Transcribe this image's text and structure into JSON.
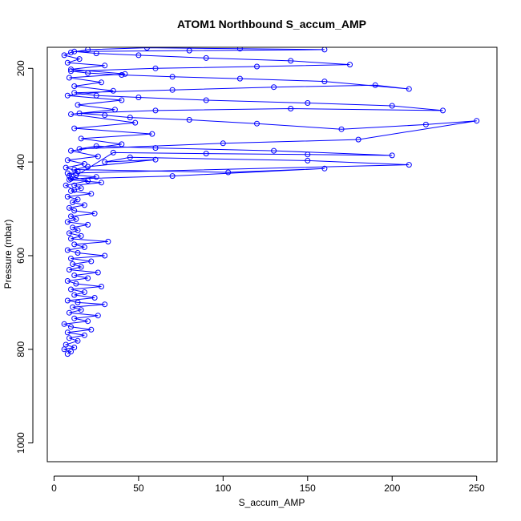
{
  "chart_data": {
    "type": "line",
    "title": "ATOM1 Northbound S_accum_AMP",
    "xlabel": "S_accum_AMP",
    "ylabel": "Pressure (mbar)",
    "xlim": [
      -4,
      262
    ],
    "ylim": [
      1040,
      155
    ],
    "y_reversed": true,
    "x_ticks": [
      0,
      50,
      100,
      150,
      200,
      250
    ],
    "y_ticks": [
      200,
      400,
      600,
      800,
      1000
    ],
    "marker": "open-circle",
    "series": [
      {
        "color": "#0000ff",
        "points": [
          [
            8,
            810
          ],
          [
            10,
            805
          ],
          [
            6,
            800
          ],
          [
            12,
            796
          ],
          [
            7,
            790
          ],
          [
            14,
            782
          ],
          [
            9,
            776
          ],
          [
            18,
            770
          ],
          [
            8,
            764
          ],
          [
            22,
            758
          ],
          [
            10,
            752
          ],
          [
            6,
            746
          ],
          [
            20,
            740
          ],
          [
            12,
            734
          ],
          [
            26,
            728
          ],
          [
            9,
            722
          ],
          [
            16,
            716
          ],
          [
            11,
            710
          ],
          [
            30,
            704
          ],
          [
            14,
            700
          ],
          [
            8,
            696
          ],
          [
            24,
            690
          ],
          [
            12,
            684
          ],
          [
            18,
            678
          ],
          [
            10,
            672
          ],
          [
            28,
            666
          ],
          [
            13,
            660
          ],
          [
            8,
            654
          ],
          [
            20,
            648
          ],
          [
            12,
            642
          ],
          [
            26,
            636
          ],
          [
            9,
            630
          ],
          [
            16,
            624
          ],
          [
            11,
            618
          ],
          [
            22,
            612
          ],
          [
            10,
            606
          ],
          [
            30,
            600
          ],
          [
            14,
            594
          ],
          [
            8,
            588
          ],
          [
            18,
            582
          ],
          [
            12,
            576
          ],
          [
            32,
            570
          ],
          [
            10,
            564
          ],
          [
            16,
            558
          ],
          [
            9,
            552
          ],
          [
            14,
            546
          ],
          [
            11,
            540
          ],
          [
            20,
            534
          ],
          [
            8,
            528
          ],
          [
            13,
            522
          ],
          [
            10,
            516
          ],
          [
            24,
            510
          ],
          [
            12,
            504
          ],
          [
            9,
            498
          ],
          [
            18,
            492
          ],
          [
            11,
            486
          ],
          [
            14,
            480
          ],
          [
            8,
            474
          ],
          [
            22,
            468
          ],
          [
            10,
            462
          ],
          [
            16,
            456
          ],
          [
            12,
            450
          ],
          [
            28,
            444
          ],
          [
            9,
            438
          ],
          [
            25,
            432
          ],
          [
            13,
            428
          ],
          [
            8,
            424
          ],
          [
            210,
            406
          ],
          [
            150,
            397
          ],
          [
            45,
            390
          ],
          [
            30,
            400
          ],
          [
            60,
            395
          ],
          [
            20,
            410
          ],
          [
            12,
            416
          ],
          [
            103,
            422
          ],
          [
            160,
            414
          ],
          [
            70,
            430
          ],
          [
            10,
            436
          ],
          [
            35,
            380
          ],
          [
            90,
            382
          ],
          [
            150,
            384
          ],
          [
            200,
            386
          ],
          [
            130,
            376
          ],
          [
            60,
            370
          ],
          [
            25,
            366
          ],
          [
            15,
            372
          ],
          [
            100,
            360
          ],
          [
            180,
            352
          ],
          [
            250,
            312
          ],
          [
            220,
            320
          ],
          [
            170,
            330
          ],
          [
            120,
            318
          ],
          [
            80,
            310
          ],
          [
            45,
            305
          ],
          [
            30,
            300
          ],
          [
            15,
            296
          ],
          [
            60,
            290
          ],
          [
            140,
            286
          ],
          [
            230,
            290
          ],
          [
            200,
            280
          ],
          [
            150,
            274
          ],
          [
            90,
            268
          ],
          [
            50,
            262
          ],
          [
            25,
            258
          ],
          [
            12,
            252
          ],
          [
            70,
            246
          ],
          [
            130,
            240
          ],
          [
            190,
            236
          ],
          [
            210,
            244
          ],
          [
            160,
            228
          ],
          [
            110,
            222
          ],
          [
            70,
            218
          ],
          [
            40,
            214
          ],
          [
            20,
            210
          ],
          [
            10,
            206
          ],
          [
            60,
            200
          ],
          [
            120,
            196
          ],
          [
            175,
            192
          ],
          [
            140,
            184
          ],
          [
            90,
            178
          ],
          [
            50,
            172
          ],
          [
            25,
            168
          ],
          [
            12,
            164
          ],
          [
            80,
            162
          ],
          [
            160,
            160
          ],
          [
            110,
            158
          ],
          [
            55,
            156
          ],
          [
            20,
            160
          ],
          [
            10,
            166
          ],
          [
            6,
            172
          ],
          [
            15,
            180
          ],
          [
            8,
            188
          ],
          [
            30,
            194
          ],
          [
            10,
            202
          ],
          [
            42,
            212
          ],
          [
            9,
            220
          ],
          [
            28,
            230
          ],
          [
            12,
            238
          ],
          [
            35,
            248
          ],
          [
            8,
            258
          ],
          [
            40,
            268
          ],
          [
            14,
            278
          ],
          [
            36,
            288
          ],
          [
            10,
            298
          ],
          [
            48,
            316
          ],
          [
            12,
            328
          ],
          [
            58,
            340
          ],
          [
            16,
            350
          ],
          [
            40,
            362
          ],
          [
            10,
            376
          ],
          [
            26,
            388
          ],
          [
            8,
            396
          ],
          [
            18,
            404
          ],
          [
            7,
            412
          ],
          [
            14,
            420
          ],
          [
            9,
            430
          ],
          [
            20,
            440
          ],
          [
            7,
            450
          ],
          [
            12,
            460
          ]
        ]
      }
    ]
  }
}
